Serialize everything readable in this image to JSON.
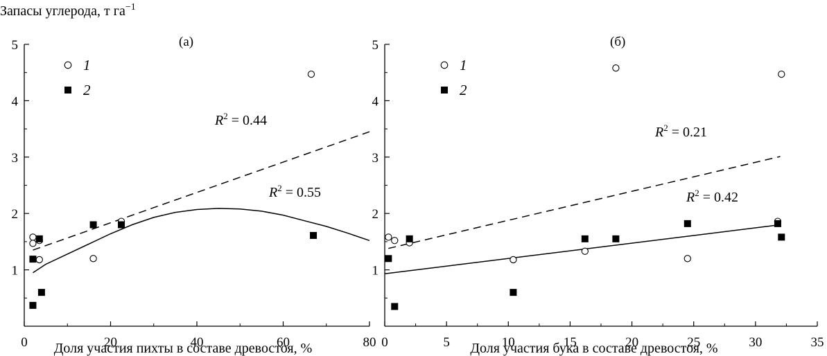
{
  "figure": {
    "ylabel": "Запасы углерода, т га",
    "ylabel_sup": "−1"
  },
  "legend": [
    {
      "marker": "circle-open",
      "label": "1"
    },
    {
      "marker": "square-filled",
      "label": "2"
    }
  ],
  "chart_data": [
    {
      "type": "scatter",
      "panel_label": "(а)",
      "xlabel": "Доля участия пихты в составе древостоя, %",
      "ylabel": "Запасы углерода, т га−1",
      "xlim": [
        0,
        80
      ],
      "ylim": [
        0,
        5
      ],
      "xticks": [
        0,
        20,
        40,
        60,
        80
      ],
      "yticks": [
        1,
        2,
        3,
        4,
        5
      ],
      "series": [
        {
          "name": "1",
          "marker": "circle-open",
          "points": [
            [
              2,
              1.58
            ],
            [
              2,
              1.47
            ],
            [
              3.5,
              1.52
            ],
            [
              3.5,
              1.18
            ],
            [
              16,
              1.2
            ],
            [
              22.5,
              1.86
            ],
            [
              66.5,
              4.47
            ]
          ]
        },
        {
          "name": "2",
          "marker": "square-filled",
          "points": [
            [
              2,
              1.19
            ],
            [
              2,
              0.37
            ],
            [
              3.5,
              1.55
            ],
            [
              4,
              0.6
            ],
            [
              16,
              1.8
            ],
            [
              22.5,
              1.8
            ],
            [
              67,
              1.61
            ]
          ]
        }
      ],
      "fits": [
        {
          "series": "1",
          "style": "dashed",
          "kind": "linear",
          "x": [
            2,
            80
          ],
          "y": [
            1.35,
            3.45
          ],
          "r2_label": "= 0.44"
        },
        {
          "series": "2",
          "style": "solid",
          "kind": "polynomial",
          "x": [
            2,
            5,
            10,
            15,
            20,
            25,
            30,
            35,
            40,
            45,
            50,
            55,
            60,
            65,
            70,
            75,
            80
          ],
          "y": [
            0.95,
            1.1,
            1.28,
            1.46,
            1.64,
            1.8,
            1.93,
            2.02,
            2.07,
            2.09,
            2.08,
            2.04,
            1.97,
            1.87,
            1.77,
            1.65,
            1.52
          ],
          "r2_label": "= 0.55"
        }
      ]
    },
    {
      "type": "scatter",
      "panel_label": "(б)",
      "xlabel": "Доля участия бука в составе древостоя, %",
      "xlim": [
        0,
        35
      ],
      "ylim": [
        0,
        5
      ],
      "xticks": [
        0,
        5,
        10,
        15,
        20,
        25,
        30,
        35
      ],
      "yticks": [
        1,
        2,
        3,
        4,
        5
      ],
      "series": [
        {
          "name": "1",
          "marker": "circle-open",
          "points": [
            [
              0.3,
              1.58
            ],
            [
              0.8,
              1.52
            ],
            [
              2,
              1.48
            ],
            [
              10.4,
              1.18
            ],
            [
              16.2,
              1.33
            ],
            [
              18.7,
              4.58
            ],
            [
              24.5,
              1.2
            ],
            [
              31.8,
              1.86
            ],
            [
              32.1,
              4.47
            ]
          ]
        },
        {
          "name": "2",
          "marker": "square-filled",
          "points": [
            [
              0.3,
              1.2
            ],
            [
              0.8,
              0.35
            ],
            [
              2,
              1.55
            ],
            [
              10.4,
              0.6
            ],
            [
              16.2,
              1.55
            ],
            [
              18.7,
              1.55
            ],
            [
              24.5,
              1.82
            ],
            [
              31.8,
              1.82
            ],
            [
              32.1,
              1.58
            ]
          ]
        }
      ],
      "fits": [
        {
          "series": "1",
          "style": "dashed",
          "kind": "linear",
          "x": [
            0.3,
            32
          ],
          "y": [
            1.38,
            3.01
          ],
          "r2_label": "= 0.21"
        },
        {
          "series": "2",
          "style": "solid",
          "kind": "linear",
          "x": [
            0,
            32
          ],
          "y": [
            0.93,
            1.8
          ],
          "r2_label": "= 0.42"
        }
      ]
    }
  ]
}
